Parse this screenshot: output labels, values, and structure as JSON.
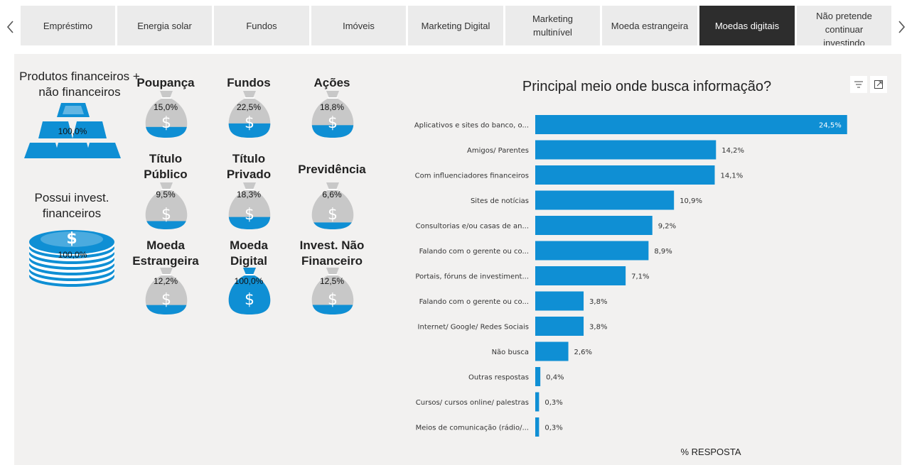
{
  "tabs": [
    {
      "label": "Empréstimo",
      "active": false
    },
    {
      "label": "Energia solar",
      "active": false
    },
    {
      "label": "Fundos",
      "active": false
    },
    {
      "label": "Imóveis",
      "active": false
    },
    {
      "label": "Marketing Digital",
      "active": false
    },
    {
      "label": "Marketing multinível",
      "active": false
    },
    {
      "label": "Moeda estrangeira",
      "active": false
    },
    {
      "label": "Moedas digitais",
      "active": true
    },
    {
      "label": "Não pretende continuar investindo",
      "active": false
    }
  ],
  "icons": {
    "prev": "chevron-left-icon",
    "next": "chevron-right-icon",
    "filter": "filter-icon",
    "focus": "focus-mode-icon",
    "pyramid": "gold-bars-icon",
    "coins": "coin-stack-icon",
    "bag": "money-bag-icon"
  },
  "colors": {
    "accent": "#0f8fd4",
    "bag_gray": "#c8c8c8",
    "tab_active": "#2d2d2d",
    "tab_inactive": "#ebebeb",
    "canvas": "#f2f1f0"
  },
  "left_panel": {
    "produtos_label": "Produtos financeiros + não financeiros",
    "produtos_value": "100,0%",
    "possui_label": "Possui invest. financeiros",
    "possui_value": "100,0%"
  },
  "bags": [
    {
      "title": "Poupança",
      "value": "15,0%",
      "fraction": 0.15
    },
    {
      "title": "Fundos",
      "value": "22,5%",
      "fraction": 0.225
    },
    {
      "title": "Ações",
      "value": "18,8%",
      "fraction": 0.188
    },
    {
      "title": "Título Público",
      "value": "9,5%",
      "fraction": 0.095
    },
    {
      "title": "Título Privado",
      "value": "18,3%",
      "fraction": 0.183
    },
    {
      "title": "Previdência",
      "value": "6,6%",
      "fraction": 0.066
    },
    {
      "title": "Moeda Estrangeira",
      "value": "12,2%",
      "fraction": 0.122
    },
    {
      "title": "Moeda Digital",
      "value": "100,0%",
      "fraction": 1.0
    },
    {
      "title": "Invest. Não Financeiro",
      "value": "12,5%",
      "fraction": 0.125
    }
  ],
  "chart_data": {
    "type": "bar",
    "orientation": "horizontal",
    "title": "Principal meio onde busca informação?",
    "xlabel": "% RESPOSTA",
    "ylabel": "",
    "xlim": [
      0,
      26
    ],
    "grid": false,
    "legend": "none",
    "categories": [
      "Aplicativos e sites do banco, o...",
      "Amigos/ Parentes",
      "Com influenciadores financeiros",
      "Sites de notícias",
      "Consultorias e/ou casas de an...",
      "Falando com o gerente ou co...",
      "Portais, fóruns de investiment...",
      "Falando com o gerente ou co...",
      "Internet/ Google/ Redes Sociais",
      "Não busca",
      "Outras respostas",
      "Cursos/ cursos online/ palestras",
      "Meios de comunicação (rádio/..."
    ],
    "values": [
      24.5,
      14.2,
      14.1,
      10.9,
      9.2,
      8.9,
      7.1,
      3.8,
      3.8,
      2.6,
      0.4,
      0.3,
      0.3
    ],
    "labels": [
      "24,5%",
      "14,2%",
      "14,1%",
      "10,9%",
      "9,2%",
      "8,9%",
      "7,1%",
      "3,8%",
      "3,8%",
      "2,6%",
      "0,4%",
      "0,3%",
      "0,3%"
    ]
  }
}
